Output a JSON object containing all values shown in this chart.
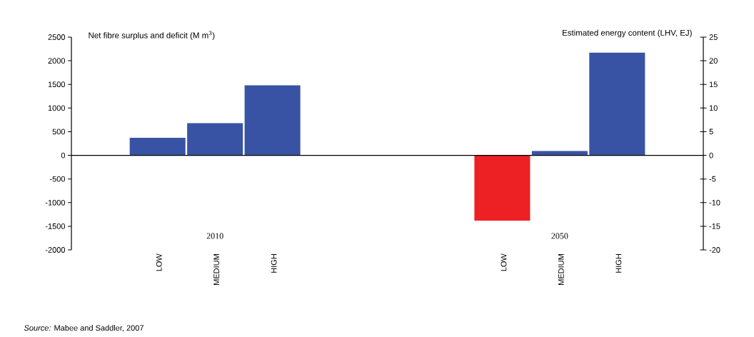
{
  "chart_data": {
    "type": "bar",
    "ylabel": "Net fibre surplus and deficit (M m$^{3}$)",
    "y2label": "Estimated energy content (LHV, EJ)",
    "categories": [
      null,
      "LOW",
      "MEDIUM",
      "HIGH",
      null,
      null,
      null,
      "LOW",
      "MEDIUM",
      "HIGH",
      null
    ],
    "values": [
      null,
      370,
      680,
      1480,
      null,
      null,
      null,
      -1380,
      90,
      2170,
      null
    ],
    "colors": [
      null,
      "#3953a4",
      "#3953a4",
      "#3953a4",
      null,
      null,
      null,
      "#ed2024",
      "#3953a4",
      "#3953a4",
      null
    ],
    "ylim": [
      -2000,
      2500
    ],
    "yticks": [
      -2000,
      -1500,
      -1000,
      -500,
      0,
      500,
      1000,
      1500,
      2000,
      2500
    ],
    "y2lim": [
      -20,
      25
    ],
    "y2ticks": [
      -20,
      -15,
      -10,
      -5,
      0,
      5,
      10,
      15,
      20,
      25
    ],
    "annotations": [
      "2010",
      "2050",
      "*Source:* Mabee and Saddler, 2007"
    ]
  }
}
